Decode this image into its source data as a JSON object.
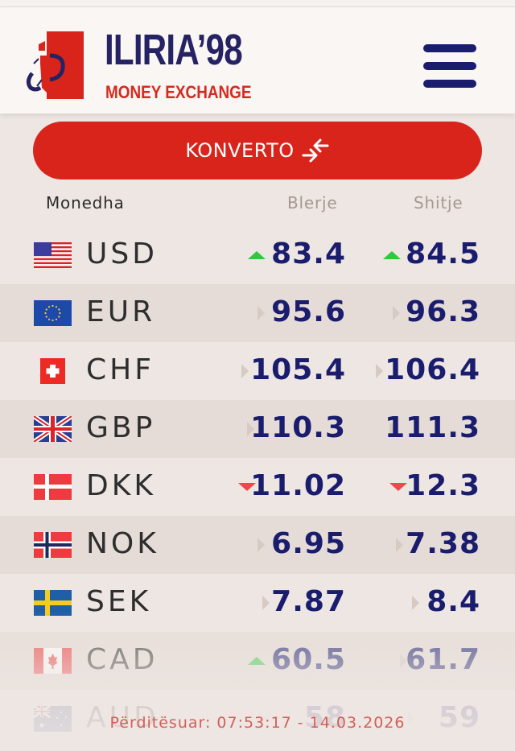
{
  "header": {
    "brand_name": "ILIRIA’98",
    "brand_subtitle": "MONEY EXCHANGE",
    "menu_icon": "hamburger-menu-icon"
  },
  "convert_button": {
    "label": "KONVERTO",
    "icon": "convert-arrows-icon"
  },
  "table": {
    "columns": {
      "currency": "Monedha",
      "buy": "Blerje",
      "sell": "Shitje"
    },
    "rows": [
      {
        "code": "USD",
        "flag": "us-flag-icon",
        "buy": "83.4",
        "buy_trend": "up",
        "sell": "84.5",
        "sell_trend": "up"
      },
      {
        "code": "EUR",
        "flag": "eu-flag-icon",
        "buy": "95.6",
        "buy_trend": "neutral",
        "sell": "96.3",
        "sell_trend": "neutral"
      },
      {
        "code": "CHF",
        "flag": "ch-flag-icon",
        "buy": "105.4",
        "buy_trend": "neutral",
        "sell": "106.4",
        "sell_trend": "neutral"
      },
      {
        "code": "GBP",
        "flag": "gb-flag-icon",
        "buy": "110.3",
        "buy_trend": "neutral",
        "sell": "111.3",
        "sell_trend": "neutral"
      },
      {
        "code": "DKK",
        "flag": "dk-flag-icon",
        "buy": "11.02",
        "buy_trend": "down",
        "sell": "12.3",
        "sell_trend": "down"
      },
      {
        "code": "NOK",
        "flag": "no-flag-icon",
        "buy": "6.95",
        "buy_trend": "neutral",
        "sell": "7.38",
        "sell_trend": "neutral"
      },
      {
        "code": "SEK",
        "flag": "se-flag-icon",
        "buy": "7.87",
        "buy_trend": "neutral",
        "sell": "8.4",
        "sell_trend": "neutral"
      },
      {
        "code": "CAD",
        "flag": "ca-flag-icon",
        "buy": "60.5",
        "buy_trend": "up",
        "sell": "61.7",
        "sell_trend": "neutral"
      },
      {
        "code": "AUD",
        "flag": "au-flag-icon",
        "buy": "58",
        "buy_trend": "neutral",
        "sell": "59",
        "sell_trend": "neutral"
      }
    ]
  },
  "footer": {
    "updated_text": "Përditësuar: 07:53:17 - 14.03.2026"
  },
  "colors": {
    "brand_navy": "#1a1d6e",
    "brand_red": "#d9241c",
    "trend_up": "#2fc93f",
    "trend_down": "#f0474b",
    "trend_neutral": "#d6cac3"
  }
}
